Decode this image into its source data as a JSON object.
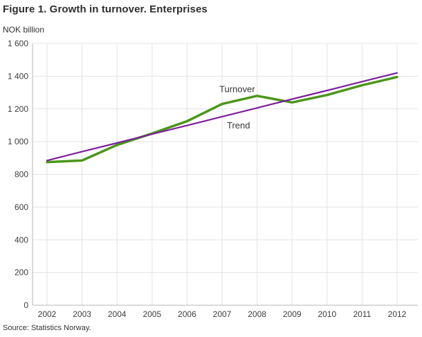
{
  "page": {
    "title": "Figure 1. Growth in turnover. Enterprises",
    "units_label": "NOK billion",
    "source": "Source: Statistics Norway."
  },
  "chart_data": {
    "type": "line",
    "title": "Figure 1. Growth in turnover. Enterprises",
    "ylabel": "NOK billion",
    "xlabel": "",
    "source": "Source: Statistics Norway.",
    "categories": [
      "2002",
      "2003",
      "2004",
      "2005",
      "2006",
      "2007",
      "2008",
      "2009",
      "2010",
      "2011",
      "2012"
    ],
    "series": [
      {
        "name": "Turnover",
        "color": "#4b9619",
        "values": [
          875,
          885,
          980,
          1050,
          1125,
          1230,
          1280,
          1240,
          1285,
          1345,
          1395
        ]
      },
      {
        "name": "Trend",
        "color": "#7d1ea0",
        "values": [
          885,
          939,
          992,
          1046,
          1099,
          1153,
          1206,
          1260,
          1313,
          1367,
          1420
        ]
      }
    ],
    "ylim": [
      0,
      1600
    ],
    "ytick_step": 200,
    "ytick_labels": [
      "0",
      "200",
      "400",
      "600",
      "800",
      "1 000",
      "1 200",
      "1 400",
      "1 600"
    ],
    "grid": true,
    "legend_position": "inline-labels",
    "annotations": [
      {
        "text": "Turnover",
        "series": "Turnover",
        "anchor_category": "2007",
        "position": "above"
      },
      {
        "text": "Trend",
        "series": "Trend",
        "anchor_category": "2007",
        "position": "below"
      }
    ]
  }
}
